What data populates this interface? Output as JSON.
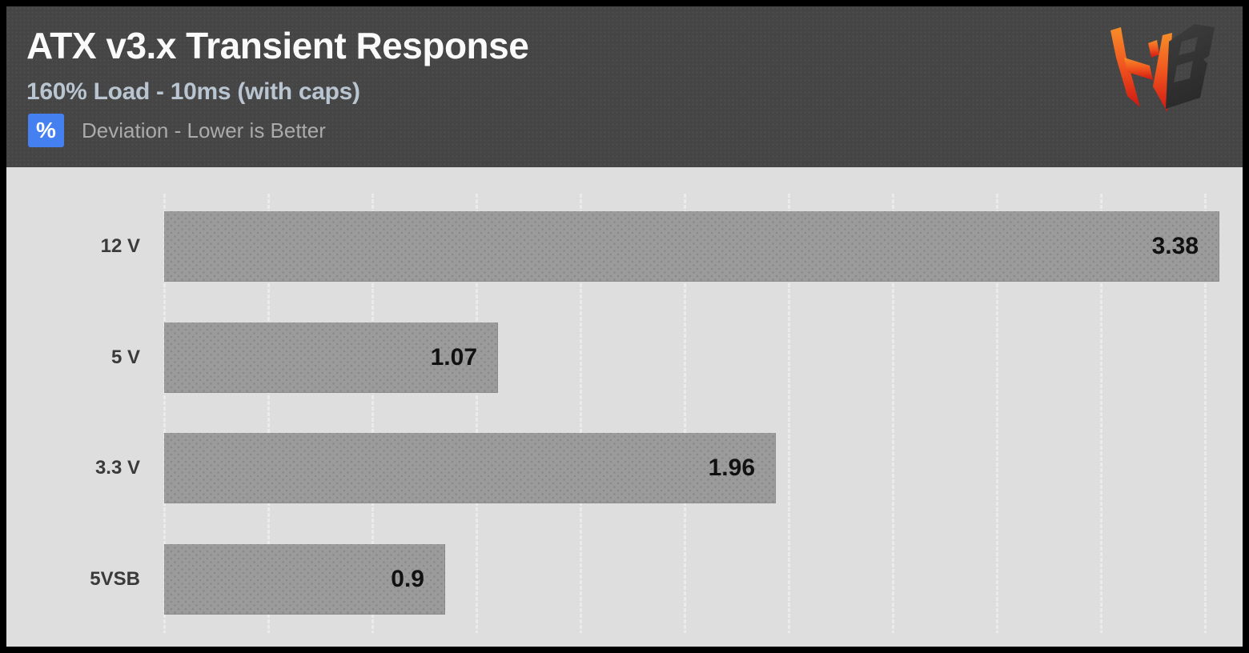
{
  "header": {
    "title": "ATX v3.x Transient Response",
    "subtitle": "160% Load - 10ms (with caps)",
    "unit_badge": "%",
    "legend": "Deviation - Lower is Better",
    "logo": "hardware-busters-hb-logo"
  },
  "colors": {
    "frame": "#000000",
    "header_bg": "#454545",
    "title": "#fafafa",
    "subtitle": "#b9c5d1",
    "badge_bg": "#4480f0",
    "legend_text": "#ababab",
    "chart_bg": "#dedede",
    "gridline": "#ebebeb",
    "bar": "#9b9b9b",
    "bar_dot": "#878787",
    "bar_value_text": "#111111",
    "category_text": "#3a3a3a",
    "logo_orange": "#f78d2a",
    "logo_red": "#cf1712",
    "logo_dark": "#333333"
  },
  "chart_data": {
    "type": "bar",
    "orientation": "horizontal",
    "title": "ATX v3.x Transient Response",
    "subtitle": "160% Load - 10ms (with caps)",
    "unit": "%",
    "note": "Deviation - Lower is Better",
    "categories": [
      "12 V",
      "5 V",
      "3.3 V",
      "5VSB"
    ],
    "values": [
      3.38,
      1.07,
      1.96,
      0.9
    ],
    "value_labels": [
      "3.38",
      "1.07",
      "1.96",
      "0.9"
    ],
    "xlim": [
      0,
      3.38
    ],
    "grid": "vertical-only, 10 equal divisions, no tick labels",
    "legend_position": "none",
    "value_label_position": "inside-bar-right"
  }
}
